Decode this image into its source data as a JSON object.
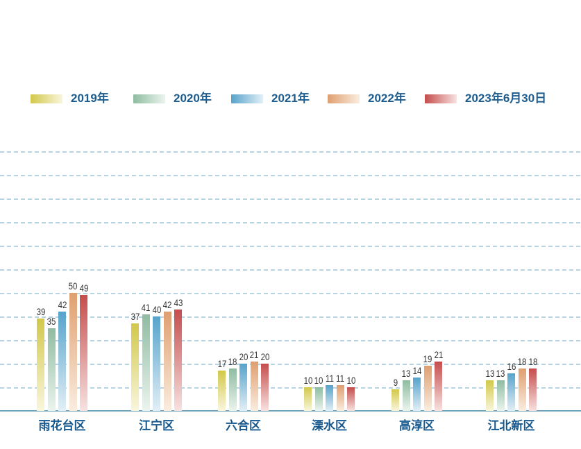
{
  "page": {
    "background": "#ffffff"
  },
  "legend": {
    "text_color": "#1d5c8e",
    "items": [
      {
        "label": "2019年"
      },
      {
        "label": "2020年"
      },
      {
        "label": "2021年"
      },
      {
        "label": "2022年"
      },
      {
        "label": "2023年6月30日"
      }
    ]
  },
  "chart_data": {
    "type": "bar",
    "title": "",
    "xlabel": "",
    "ylabel": "",
    "categories": [
      "雨花台区",
      "江宁区",
      "六合区",
      "溧水区",
      "高淳区",
      "江北新区"
    ],
    "series": [
      {
        "name": "2019年",
        "color": "#d2c84a",
        "color_light": "#f9f6dc",
        "values": [
          39,
          37,
          17,
          10,
          9,
          13
        ]
      },
      {
        "name": "2020年",
        "color": "#8fbca1",
        "color_light": "#ebf4ee",
        "values": [
          35,
          41,
          18,
          10,
          13,
          13
        ]
      },
      {
        "name": "2021年",
        "color": "#57a3cb",
        "color_light": "#e2eff6",
        "values": [
          42,
          40,
          20,
          11,
          14,
          16
        ]
      },
      {
        "name": "2022年",
        "color": "#df9f70",
        "color_light": "#faeddf",
        "values": [
          50,
          42,
          21,
          11,
          19,
          18
        ]
      },
      {
        "name": "2023年6月30日",
        "color": "#c54d4d",
        "color_light": "#f7e2e0",
        "values": [
          49,
          43,
          20,
          10,
          21,
          18
        ]
      }
    ],
    "ylim": [
      0,
      110
    ],
    "grid_interval": 10,
    "grid": true,
    "grid_style": "dashed",
    "grid_color": "#b7d4e3",
    "axis_color": "#6ea2bd",
    "value_labels": true,
    "value_label_color": "#333333",
    "category_label_color": "#16588e",
    "legend_position": "top"
  }
}
